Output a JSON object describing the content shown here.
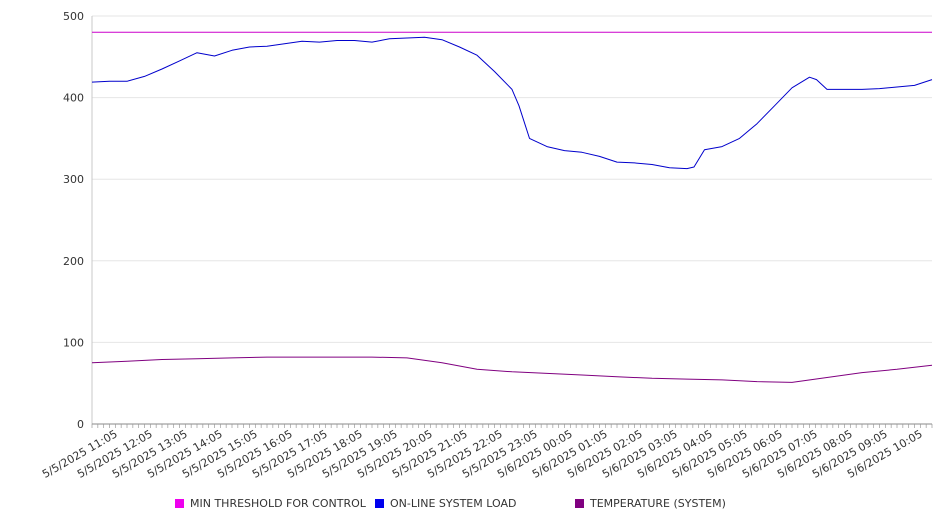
{
  "chart_data": {
    "type": "line",
    "ylim": [
      0,
      500
    ],
    "yticks": [
      0,
      100,
      200,
      300,
      400,
      500
    ],
    "x_tick_labels": [
      "5/5/2025 11:05",
      "5/5/2025 12:05",
      "5/5/2025 13:05",
      "5/5/2025 14:05",
      "5/5/2025 15:05",
      "5/5/2025 16:05",
      "5/5/2025 17:05",
      "5/5/2025 18:05",
      "5/5/2025 19:05",
      "5/5/2025 20:05",
      "5/5/2025 21:05",
      "5/5/2025 22:05",
      "5/5/2025 23:05",
      "5/6/2025 00:05",
      "5/6/2025 01:05",
      "5/6/2025 02:05",
      "5/6/2025 03:05",
      "5/6/2025 04:05",
      "5/6/2025 05:05",
      "5/6/2025 06:05",
      "5/6/2025 07:05",
      "5/6/2025 08:05",
      "5/6/2025 09:05",
      "5/6/2025 10:05"
    ],
    "x_range_hours": [
      0,
      24
    ],
    "grid": true,
    "legend_position": "bottom",
    "series": [
      {
        "name": "MIN THRESHOLD FOR CONTROL",
        "color": "#cc00cc",
        "x": [
          0,
          24
        ],
        "y": [
          480,
          480
        ]
      },
      {
        "name": "ON-LINE SYSTEM LOAD",
        "color": "#0000cc",
        "x": [
          0,
          0.5,
          1,
          1.5,
          2,
          2.5,
          3,
          3.5,
          4,
          4.5,
          5,
          5.5,
          6,
          6.5,
          7,
          7.5,
          8,
          8.5,
          9,
          9.5,
          10,
          10.5,
          11,
          11.5,
          12,
          12.2,
          12.5,
          13,
          13.5,
          14,
          14.5,
          15,
          15.5,
          16,
          16.5,
          17,
          17.2,
          17.5,
          18,
          18.5,
          19,
          19.5,
          20,
          20.5,
          20.7,
          21,
          21.5,
          22,
          22.5,
          23,
          23.5,
          24
        ],
        "y": [
          419,
          420,
          420,
          426,
          435,
          445,
          455,
          451,
          458,
          462,
          463,
          466,
          469,
          468,
          470,
          470,
          468,
          472,
          473,
          474,
          471,
          462,
          452,
          432,
          410,
          390,
          350,
          340,
          335,
          333,
          328,
          321,
          320,
          318,
          314,
          313,
          315,
          336,
          340,
          350,
          368,
          390,
          412,
          425,
          422,
          410,
          410,
          410,
          411,
          413,
          415,
          422
        ]
      },
      {
        "name": "TEMPERATURE (SYSTEM)",
        "color": "#800080",
        "x": [
          0,
          1,
          2,
          3,
          4,
          5,
          6,
          7,
          8,
          9,
          10,
          11,
          12,
          13,
          14,
          15,
          16,
          17,
          18,
          19,
          20,
          21,
          22,
          23,
          24
        ],
        "y": [
          75,
          77,
          79,
          80,
          81,
          82,
          82,
          82,
          82,
          81,
          75,
          67,
          64,
          62,
          60,
          58,
          56,
          55,
          54,
          52,
          51,
          57,
          63,
          67,
          72
        ]
      }
    ]
  }
}
